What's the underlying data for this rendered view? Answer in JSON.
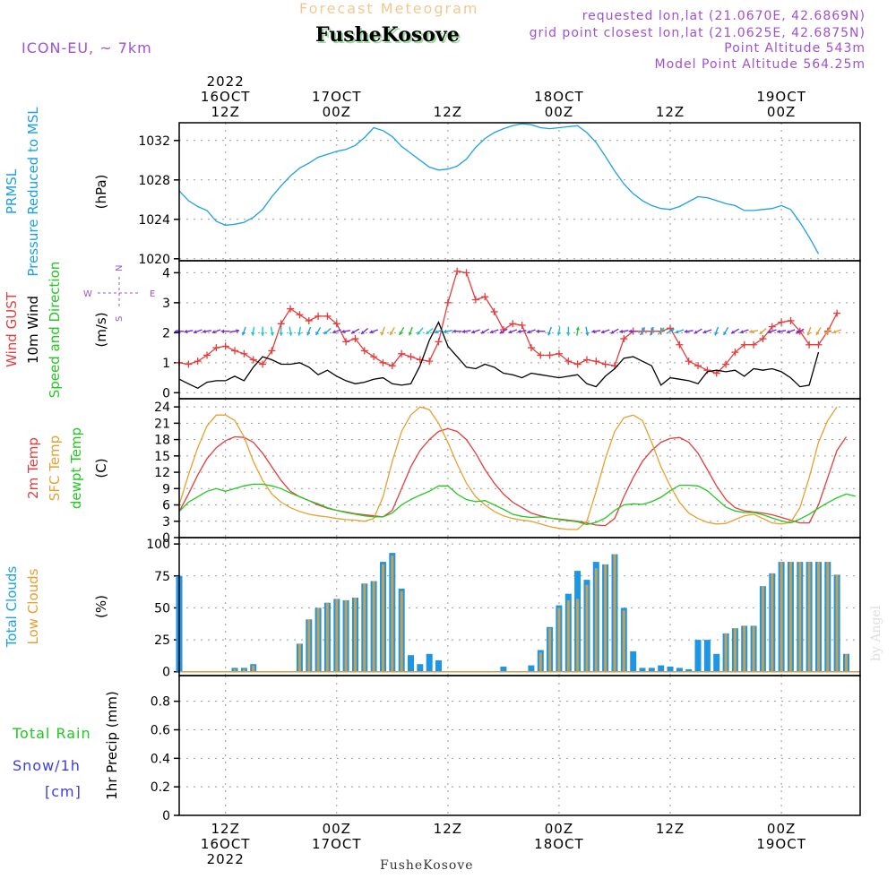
{
  "header": {
    "subtitle": "Forecast Meteogram",
    "location": "FusheKosove",
    "model": "ICON-EU, ~ 7km",
    "requested": "requested lon,lat (21.0670E, 42.6869N)",
    "closest": "grid point closest lon,lat (21.0625E, 42.6875N)",
    "altitude": "Point Altitude 543m",
    "model_altitude": "Model Point Altitude 564.25m",
    "footer": "FusheKosove",
    "credit": "by Angel"
  },
  "time_axis": {
    "top_labels": [
      {
        "t": 12,
        "lines": [
          "2022",
          "16OCT",
          "12Z"
        ]
      },
      {
        "t": 24,
        "lines": [
          "17OCT",
          "00Z"
        ]
      },
      {
        "t": 36,
        "lines": [
          "12Z"
        ]
      },
      {
        "t": 48,
        "lines": [
          "18OCT",
          "00Z"
        ]
      },
      {
        "t": 60,
        "lines": [
          "12Z"
        ]
      },
      {
        "t": 72,
        "lines": [
          "19OCT",
          "00Z"
        ]
      }
    ],
    "bottom_labels": [
      {
        "t": 12,
        "lines": [
          "12Z",
          "16OCT",
          "2022"
        ]
      },
      {
        "t": 24,
        "lines": [
          "00Z",
          "17OCT"
        ]
      },
      {
        "t": 36,
        "lines": [
          "12Z"
        ]
      },
      {
        "t": 48,
        "lines": [
          "00Z",
          "18OCT"
        ]
      },
      {
        "t": 60,
        "lines": [
          "12Z"
        ]
      },
      {
        "t": 72,
        "lines": [
          "00Z",
          "19OCT"
        ]
      }
    ]
  },
  "chart_data": [
    {
      "type": "line",
      "label_lines": [
        "PRMSL",
        "Pressure Reduced to MSL"
      ],
      "ylabel": "(hPa)",
      "yticks": [
        1020,
        1024,
        1028,
        1032
      ],
      "ylim": [
        1019.8,
        1033.8
      ],
      "x_start_hour": 7,
      "x_step_hours": 1,
      "series": [
        {
          "name": "PRMSL",
          "color": "#1ea0e6",
          "values": [
            1026.9,
            1025.9,
            1025.3,
            1024.9,
            1023.8,
            1023.4,
            1023.5,
            1023.7,
            1024.2,
            1025.0,
            1026.3,
            1027.4,
            1028.4,
            1029.2,
            1029.7,
            1030.3,
            1030.6,
            1030.9,
            1031.1,
            1031.5,
            1032.3,
            1033.3,
            1033.0,
            1032.4,
            1031.4,
            1030.7,
            1030.0,
            1029.3,
            1029.0,
            1029.1,
            1029.4,
            1030.1,
            1031.3,
            1032.2,
            1032.8,
            1033.2,
            1033.5,
            1033.7,
            1033.6,
            1033.3,
            1033.2,
            1033.3,
            1033.4,
            1033.5,
            1032.8,
            1031.8,
            1030.4,
            1028.9,
            1027.6,
            1026.6,
            1025.9,
            1025.4,
            1025.1,
            1025.0,
            1025.3,
            1025.8,
            1026.3,
            1026.2,
            1025.9,
            1025.6,
            1025.4,
            1024.9,
            1024.9,
            1025.0,
            1025.1,
            1025.4,
            1025.0,
            1023.7,
            1022.2,
            1020.5
          ]
        }
      ]
    },
    {
      "type": "line",
      "label_lines": [
        "Wind GUST",
        "10m Wind",
        "Speed and Direction"
      ],
      "ylabel": "(m/s)",
      "yticks": [
        0,
        1,
        2,
        3,
        4
      ],
      "ylim": [
        -0.2,
        4.4
      ],
      "compass": [
        "N",
        "W",
        "E",
        "S"
      ],
      "x_start_hour": 7,
      "x_step_hours": 1,
      "series": [
        {
          "name": "Wind GUST",
          "color": "#e63c3c",
          "marker": "+",
          "values": [
            1.0,
            0.95,
            1.05,
            1.25,
            1.5,
            1.55,
            1.4,
            1.3,
            1.1,
            0.95,
            1.4,
            2.3,
            2.8,
            2.6,
            2.4,
            2.55,
            2.55,
            2.3,
            1.7,
            1.8,
            1.4,
            1.2,
            1.0,
            0.9,
            1.3,
            1.2,
            1.1,
            1.05,
            1.7,
            3.0,
            4.05,
            4.0,
            3.1,
            3.2,
            2.7,
            2.1,
            2.3,
            2.25,
            1.5,
            1.25,
            1.25,
            1.3,
            1.05,
            0.95,
            1.1,
            1.05,
            0.95,
            0.9,
            1.8,
            2.05,
            2.05,
            2.05,
            2.05,
            2.15,
            1.6,
            1.05,
            0.9,
            0.75,
            0.65,
            0.95,
            1.35,
            1.6,
            1.6,
            1.8,
            2.2,
            2.35,
            2.4,
            2.05,
            1.6,
            1.6,
            2.05,
            2.65
          ]
        },
        {
          "name": "10m Wind",
          "color": "#000000",
          "values": [
            0.45,
            0.3,
            0.15,
            0.35,
            0.4,
            0.4,
            0.55,
            0.4,
            0.85,
            1.2,
            1.1,
            0.95,
            0.95,
            1.0,
            0.85,
            0.6,
            0.75,
            0.55,
            0.4,
            0.3,
            0.35,
            0.45,
            0.5,
            0.3,
            0.25,
            0.3,
            0.9,
            1.75,
            2.35,
            1.55,
            1.2,
            0.85,
            0.8,
            0.95,
            0.85,
            0.65,
            0.6,
            0.5,
            0.65,
            0.6,
            0.55,
            0.5,
            0.55,
            0.6,
            0.3,
            0.2,
            0.55,
            0.8,
            1.15,
            1.2,
            1.05,
            0.9,
            0.25,
            0.5,
            0.45,
            0.4,
            0.3,
            0.7,
            0.75,
            0.7,
            0.75,
            0.55,
            0.8,
            0.75,
            0.8,
            0.7,
            0.5,
            0.2,
            0.25,
            1.35
          ]
        }
      ],
      "arrow_colors": [
        "#7a2ad6",
        "#7a2ad6",
        "#7a2ad6",
        "#7a2ad6",
        "#7a2ad6",
        "#7a2ad6",
        "#7a2ad6",
        "#1aa0e6",
        "#1ac8c8",
        "#1ac8c8",
        "#1ac8c8",
        "#1ac8c8",
        "#1ac8c8",
        "#1ac8c8",
        "#1aa0e6",
        "#1aa0e6",
        "#1aa0e6",
        "#7a2ad6",
        "#7a2ad6",
        "#7a2ad6",
        "#7a2ad6",
        "#7a2ad6",
        "#e6a030",
        "#e6a030",
        "#20c830",
        "#20c830",
        "#1ac8c8",
        "#1ac8c8",
        "#1aa0e6",
        "#1aa0e6",
        "#7a2ad6",
        "#7a2ad6",
        "#7a2ad6",
        "#7a2ad6",
        "#7a2ad6",
        "#7a2ad6",
        "#7a2ad6",
        "#7a2ad6",
        "#7a2ad6",
        "#7a2ad6",
        "#1aa0e6",
        "#1ac8c8",
        "#1ac8c8",
        "#20c830",
        "#1aa0e6",
        "#7a2ad6",
        "#7a2ad6",
        "#7a2ad6",
        "#7a2ad6",
        "#7a2ad6",
        "#1aa0e6",
        "#1aa0e6",
        "#1ac8c8",
        "#1aa0e6",
        "#1aa0e6",
        "#7a2ad6",
        "#7a2ad6",
        "#7a2ad6",
        "#1aa0e6",
        "#1aa0e6",
        "#7a2ad6",
        "#7a2ad6",
        "#e6a030",
        "#e6a030",
        "#7a2ad6",
        "#7a2ad6",
        "#7a2ad6",
        "#7a2ad6",
        "#e6a030",
        "#e6a030",
        "#e6a030",
        "#e6a030"
      ],
      "arrow_directions_deg": [
        270,
        260,
        250,
        260,
        250,
        270,
        80,
        200,
        190,
        180,
        170,
        180,
        170,
        190,
        200,
        210,
        230,
        250,
        260,
        240,
        230,
        250,
        200,
        210,
        210,
        200,
        220,
        230,
        250,
        260,
        270,
        260,
        250,
        240,
        250,
        240,
        250,
        260,
        250,
        270,
        200,
        190,
        180,
        10,
        170,
        260,
        250,
        240,
        260,
        270,
        30,
        20,
        40,
        60,
        250,
        260,
        240,
        250,
        200,
        210,
        240,
        250,
        260,
        230,
        250,
        260,
        250,
        240,
        200,
        210,
        220,
        250
      ]
    },
    {
      "type": "line",
      "label_lines": [
        "2m Temp",
        "SFC Temp",
        "dewpt Temp"
      ],
      "ylabel": "(C)",
      "yticks": [
        0,
        3,
        6,
        9,
        12,
        15,
        18,
        21,
        24
      ],
      "ylim": [
        0,
        25.5
      ],
      "x_start_hour": 7,
      "x_step_hours": 1,
      "series": [
        {
          "name": "2m Temp",
          "color": "#e63c3c",
          "values": [
            4.8,
            8.0,
            11.5,
            14.5,
            16.5,
            17.8,
            18.5,
            18.4,
            17.5,
            15.5,
            13.0,
            10.5,
            8.5,
            7.5,
            6.8,
            6.0,
            5.4,
            5.0,
            4.7,
            4.4,
            4.2,
            4.0,
            3.8,
            5.0,
            9.0,
            13.0,
            16.0,
            18.0,
            19.5,
            20.0,
            19.5,
            18.0,
            15.5,
            12.5,
            10.0,
            8.0,
            6.5,
            5.5,
            4.5,
            4.0,
            3.6,
            3.4,
            3.2,
            3.0,
            2.7,
            2.3,
            2.2,
            3.5,
            7.5,
            11.0,
            14.0,
            16.0,
            17.5,
            18.2,
            18.4,
            17.5,
            15.5,
            12.5,
            9.5,
            7.0,
            5.5,
            4.9,
            4.7,
            4.5,
            4.2,
            3.7,
            3.2,
            2.7,
            2.7,
            6.0,
            11.0,
            16.0,
            18.5
          ]
        },
        {
          "name": "SFC Temp",
          "color": "#e6a030",
          "values": [
            6.0,
            11.5,
            16.5,
            20.5,
            22.5,
            22.5,
            21.5,
            18.5,
            14.0,
            10.5,
            8.0,
            6.5,
            5.5,
            4.8,
            4.3,
            4.0,
            3.8,
            3.5,
            3.3,
            3.2,
            3.0,
            3.5,
            7.5,
            14.0,
            19.5,
            22.5,
            24.0,
            23.5,
            21.0,
            17.5,
            13.5,
            10.0,
            7.5,
            6.0,
            4.8,
            4.0,
            3.5,
            3.2,
            3.0,
            2.5,
            2.0,
            1.7,
            1.5,
            1.5,
            3.0,
            8.5,
            14.5,
            19.5,
            22.0,
            22.5,
            21.5,
            17.5,
            13.0,
            9.5,
            6.5,
            4.5,
            3.5,
            2.8,
            2.5,
            2.6,
            3.3,
            4.0,
            4.3,
            3.5,
            2.7,
            2.5,
            2.8,
            5.5,
            11.0,
            17.5,
            21.5,
            24.0
          ]
        },
        {
          "name": "dewpt Temp",
          "color": "#20c820",
          "values": [
            4.8,
            6.5,
            7.5,
            8.5,
            9.0,
            8.5,
            9.0,
            9.5,
            9.8,
            9.8,
            9.5,
            9.0,
            8.2,
            7.5,
            6.8,
            6.2,
            5.5,
            5.0,
            4.6,
            4.3,
            4.0,
            3.8,
            3.8,
            4.5,
            6.0,
            7.0,
            7.8,
            8.5,
            9.5,
            9.5,
            8.0,
            7.0,
            6.6,
            6.8,
            6.0,
            5.2,
            4.3,
            3.9,
            3.7,
            3.8,
            3.6,
            3.3,
            3.1,
            2.9,
            2.4,
            2.8,
            3.6,
            5.0,
            6.0,
            6.2,
            6.1,
            6.6,
            7.4,
            8.6,
            9.6,
            9.6,
            9.5,
            8.6,
            7.1,
            5.6,
            4.9,
            4.6,
            4.6,
            4.2,
            3.6,
            3.1,
            2.7,
            3.4,
            4.3,
            5.4,
            6.4,
            7.3,
            8.0,
            7.6
          ]
        }
      ]
    },
    {
      "type": "bar",
      "label_lines": [
        "Total Clouds",
        "Low Clouds"
      ],
      "ylabel": "(%)",
      "yticks": [
        0,
        25,
        50,
        75,
        100
      ],
      "ylim": [
        -3,
        105
      ],
      "x_start_hour": 7,
      "x_step_hours": 1,
      "series": [
        {
          "name": "Total Clouds",
          "color": "#1e96e6",
          "values": [
            75,
            0,
            0,
            0,
            0,
            0,
            3,
            3,
            6,
            0,
            0,
            0,
            0,
            22,
            41,
            50,
            54,
            57,
            56,
            58,
            69,
            71,
            86,
            93,
            65,
            13,
            6,
            14,
            9,
            0,
            0,
            0,
            0,
            0,
            0,
            4,
            0,
            0,
            5,
            17,
            35,
            52,
            61,
            79,
            72,
            86,
            84,
            92,
            50,
            16,
            3,
            3,
            5,
            4,
            3,
            2,
            25,
            25,
            14,
            30,
            34,
            36,
            36,
            67,
            77,
            86,
            86,
            86,
            86,
            86,
            86,
            76,
            14,
            0
          ]
        },
        {
          "name": "Low Clouds",
          "color": "#c8a050",
          "values": [
            0,
            0,
            0,
            0,
            0,
            0,
            2,
            2,
            5,
            0,
            0,
            0,
            0,
            22,
            41,
            50,
            54,
            57,
            56,
            58,
            69,
            71,
            84,
            91,
            63,
            0,
            0,
            0,
            0,
            0,
            0,
            0,
            0,
            0,
            0,
            0,
            0,
            0,
            0,
            15,
            34,
            50,
            56,
            57,
            68,
            81,
            84,
            92,
            48,
            0,
            0,
            0,
            0,
            0,
            0,
            0,
            0,
            0,
            0,
            30,
            34,
            36,
            36,
            67,
            77,
            86,
            86,
            86,
            86,
            86,
            86,
            76,
            14,
            0
          ]
        }
      ]
    },
    {
      "type": "bar",
      "label_lines": [
        "Total   Rain",
        "Snow/1h",
        "[cm]"
      ],
      "ylabel": "1hr Precip (mm)",
      "yticks": [
        0,
        0.2,
        0.4,
        0.6,
        0.8
      ],
      "ylim": [
        0,
        0.98
      ],
      "series": [
        {
          "name": "Total Rain",
          "values": []
        },
        {
          "name": "Snow/1h",
          "values": []
        }
      ]
    }
  ]
}
